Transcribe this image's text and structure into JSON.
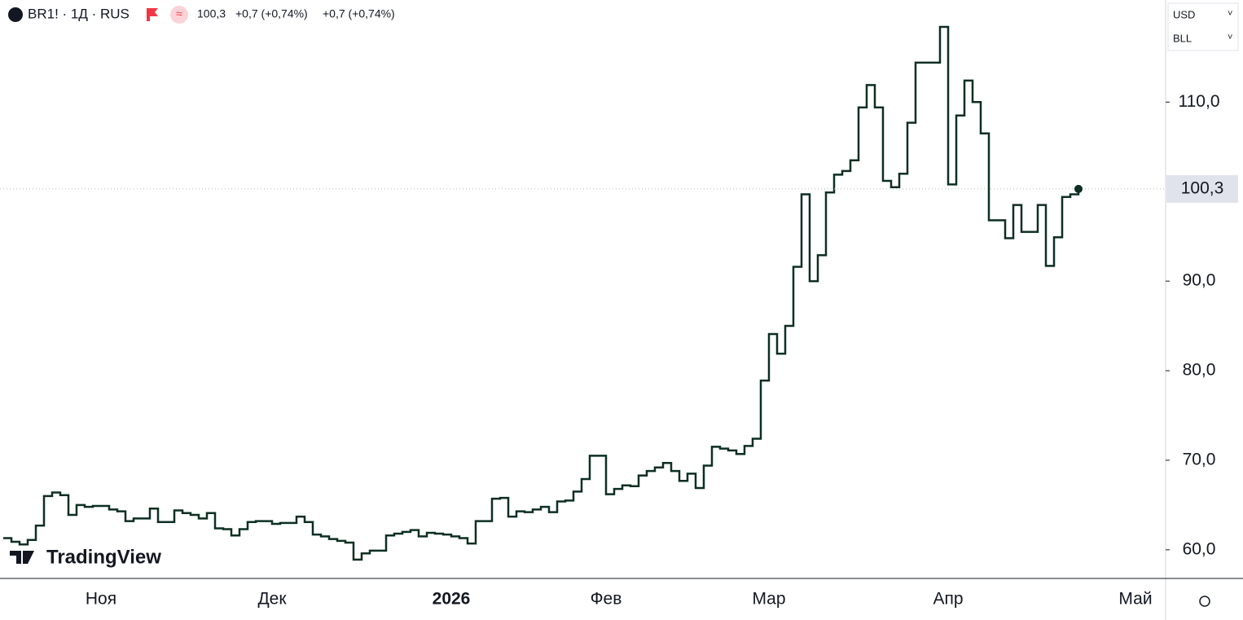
{
  "header": {
    "symbol": "BR1! · 1Д · RUS",
    "price": "100,3",
    "change": "+0,7 (+0,74%)",
    "change2": "+0,7 (+0,74%)",
    "currency": "USD",
    "unit": "BLL"
  },
  "chart_data": {
    "type": "step",
    "watermark": "TradingView",
    "color": "#0c2f21",
    "categories": [
      null,
      null,
      null,
      null,
      null,
      null,
      null,
      null,
      null,
      null,
      null,
      null,
      "Ноя",
      null,
      null,
      null,
      null,
      null,
      null,
      null,
      null,
      null,
      null,
      null,
      null,
      null,
      null,
      null,
      null,
      null,
      null,
      null,
      null,
      "Дек",
      null,
      null,
      null,
      null,
      null,
      null,
      null,
      null,
      null,
      null,
      null,
      null,
      null,
      null,
      null,
      null,
      null,
      null,
      null,
      null,
      null,
      "2026",
      null,
      null,
      null,
      null,
      null,
      null,
      null,
      null,
      null,
      null,
      null,
      null,
      null,
      null,
      null,
      null,
      null,
      null,
      "Фев",
      null,
      null,
      null,
      null,
      null,
      null,
      null,
      null,
      null,
      null,
      null,
      null,
      null,
      null,
      null,
      null,
      null,
      null,
      null,
      "Мар",
      null,
      null,
      null,
      null,
      null,
      null,
      null,
      null,
      null,
      null,
      null,
      null,
      null,
      null,
      null,
      null,
      null,
      null,
      null,
      null,
      null,
      "Апр",
      null,
      null,
      null,
      null,
      null,
      null,
      null,
      null,
      null,
      null,
      null,
      null,
      null,
      null,
      null,
      null,
      null,
      null,
      null,
      null,
      null,
      null,
      "Май",
      null,
      null,
      null
    ],
    "values": [
      61.3,
      60.9,
      60.6,
      61.1,
      62.7,
      66.0,
      66.4,
      66.1,
      63.9,
      65.0,
      64.8,
      64.9,
      64.9,
      64.5,
      64.3,
      63.2,
      63.5,
      63.5,
      64.6,
      63.1,
      63.1,
      64.4,
      64.1,
      63.9,
      63.5,
      64.1,
      62.4,
      62.3,
      61.6,
      62.3,
      63.1,
      63.2,
      63.2,
      62.9,
      63.0,
      63.0,
      63.7,
      63.1,
      61.7,
      61.5,
      61.2,
      61.0,
      60.8,
      58.9,
      59.6,
      59.9,
      59.9,
      61.6,
      61.8,
      62.0,
      62.2,
      61.5,
      61.9,
      61.8,
      61.7,
      61.5,
      61.3,
      60.7,
      63.2,
      63.2,
      65.7,
      65.8,
      63.7,
      64.3,
      64.2,
      64.5,
      64.8,
      64.2,
      65.4,
      65.5,
      66.5,
      67.9,
      70.5,
      70.5,
      66.2,
      66.8,
      67.2,
      67.1,
      68.3,
      68.8,
      69.2,
      69.7,
      68.8,
      67.7,
      68.5,
      66.9,
      69.4,
      71.5,
      71.3,
      71.1,
      70.7,
      71.6,
      72.4,
      78.9,
      84.1,
      81.9,
      85.0,
      91.6,
      99.7,
      90.0,
      92.9,
      99.9,
      101.9,
      102.3,
      103.5,
      109.4,
      111.9,
      109.4,
      101.2,
      100.5,
      102.0,
      107.7,
      114.4,
      114.4,
      114.4,
      118.4,
      100.8,
      108.5,
      112.4,
      110.0,
      106.5,
      96.8,
      96.8,
      94.8,
      98.5,
      95.5,
      95.5,
      98.5,
      91.7,
      94.9,
      99.4,
      99.7,
      100.3,
      null,
      null,
      null,
      null,
      null,
      null,
      null,
      null,
      null,
      null
    ],
    "price_label": "100,3",
    "ylim": [
      56.8,
      121.4
    ],
    "yticks": [
      {
        "value": 60,
        "label": "60,0"
      },
      {
        "value": 70,
        "label": "70,0"
      },
      {
        "value": 80,
        "label": "80,0"
      },
      {
        "value": 90,
        "label": "90,0"
      },
      {
        "value": 110,
        "label": "110,0"
      }
    ]
  }
}
